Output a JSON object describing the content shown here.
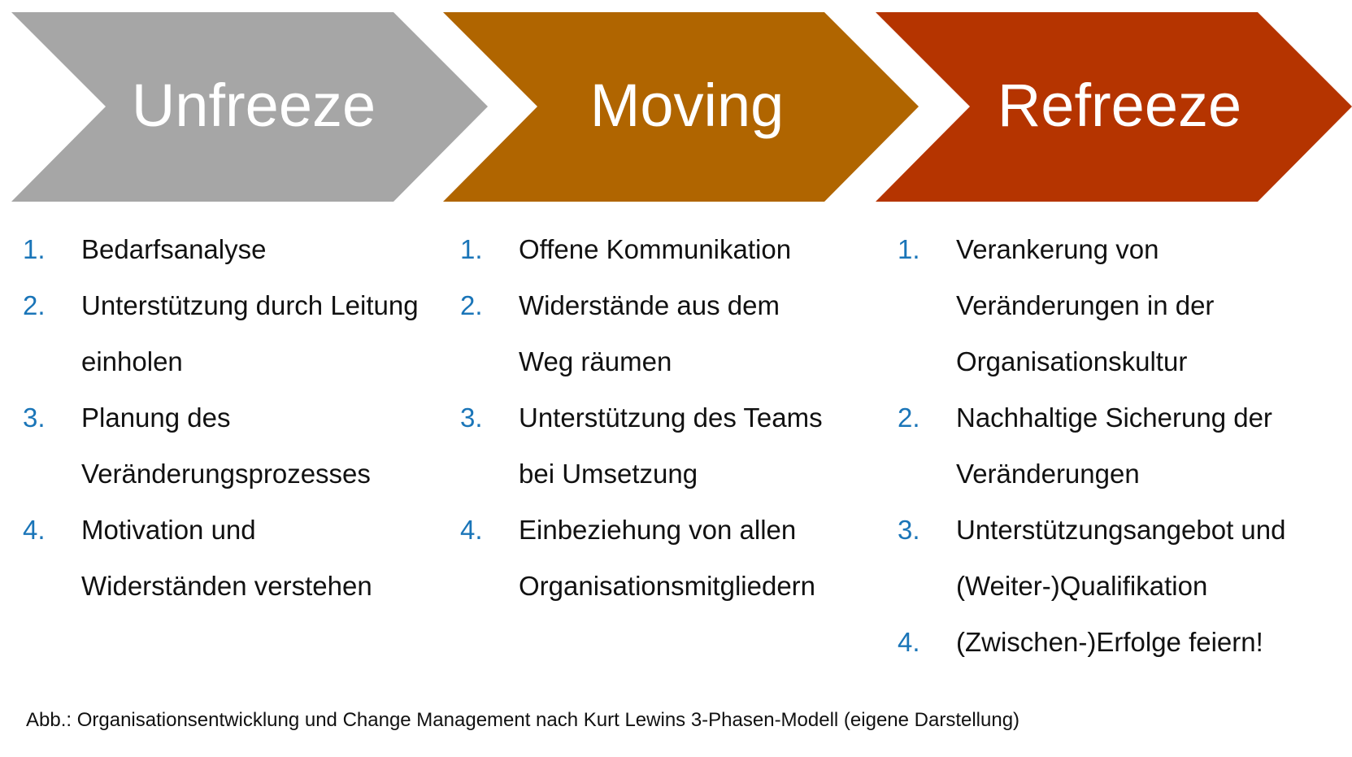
{
  "phases": [
    {
      "title": "Unfreeze",
      "color": "#a6a6a6",
      "items": [
        {
          "number": "1.",
          "lines": [
            "Bedarfsanalyse"
          ]
        },
        {
          "number": "2.",
          "lines": [
            "Unterstützung durch Leitung",
            "einholen"
          ]
        },
        {
          "number": "3.",
          "lines": [
            "Planung des",
            "Veränderungsprozesses"
          ]
        },
        {
          "number": "4.",
          "lines": [
            "Motivation und",
            "Widerständen verstehen"
          ]
        }
      ]
    },
    {
      "title": "Moving",
      "color": "#b06500",
      "items": [
        {
          "number": "1.",
          "lines": [
            "Offene Kommunikation"
          ]
        },
        {
          "number": "2.",
          "lines": [
            "Widerstände aus dem",
            "Weg räumen"
          ]
        },
        {
          "number": "3.",
          "lines": [
            "Unterstützung des Teams",
            "bei Umsetzung"
          ]
        },
        {
          "number": "4.",
          "lines": [
            "Einbeziehung von allen",
            "Organisationsmitgliedern"
          ]
        }
      ]
    },
    {
      "title": "Refreeze",
      "color": "#b53400",
      "items": [
        {
          "number": "1.",
          "lines": [
            "Verankerung von",
            "Veränderungen in der",
            "Organisationskultur"
          ]
        },
        {
          "number": "2.",
          "lines": [
            "Nachhaltige Sicherung der",
            "Veränderungen"
          ]
        },
        {
          "number": "3.",
          "lines": [
            "Unterstützungsangebot und",
            "(Weiter-)Qualifikation"
          ]
        },
        {
          "number": "4.",
          "lines": [
            "(Zwischen-)Erfolge feiern!"
          ]
        }
      ]
    }
  ],
  "number_color": "#1a75b8",
  "caption": "Abb.: Organisationsentwicklung und Change Management nach Kurt Lewins 3-Phasen-Modell (eigene Darstellung)"
}
